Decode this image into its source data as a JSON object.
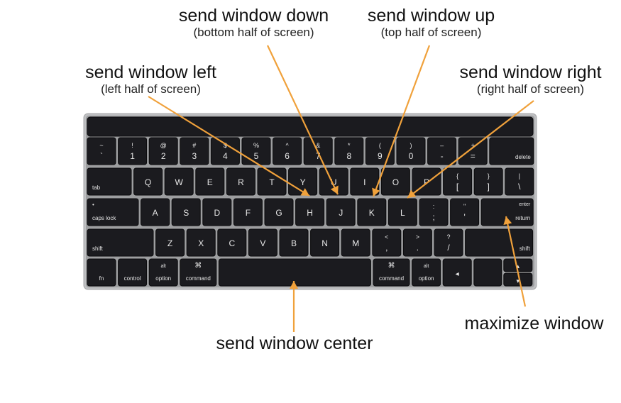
{
  "labels": {
    "down": {
      "main": "send window down",
      "sub": "(bottom half of screen)"
    },
    "up": {
      "main": "send window up",
      "sub": "(top half of screen)"
    },
    "left": {
      "main": "send window left",
      "sub": "(left half of screen)"
    },
    "right": {
      "main": "send window right",
      "sub": "(right half of screen)"
    },
    "center": {
      "main": "send window center"
    },
    "maximize": {
      "main": "maximize window"
    }
  },
  "keyboard": {
    "row1": [
      {
        "top": "~",
        "bottom": "`"
      },
      {
        "top": "!",
        "bottom": "1"
      },
      {
        "top": "@",
        "bottom": "2"
      },
      {
        "top": "#",
        "bottom": "3"
      },
      {
        "top": "$",
        "bottom": "4"
      },
      {
        "top": "%",
        "bottom": "5"
      },
      {
        "top": "^",
        "bottom": "6"
      },
      {
        "top": "&",
        "bottom": "7"
      },
      {
        "top": "*",
        "bottom": "8"
      },
      {
        "top": "(",
        "bottom": "9"
      },
      {
        "top": ")",
        "bottom": "0"
      },
      {
        "top": "–",
        "bottom": "-"
      },
      {
        "top": "+",
        "bottom": "="
      },
      {
        "label": "delete"
      }
    ],
    "row2": [
      {
        "label": "tab"
      },
      {
        "main": "Q"
      },
      {
        "main": "W"
      },
      {
        "main": "E"
      },
      {
        "main": "R"
      },
      {
        "main": "T"
      },
      {
        "main": "Y"
      },
      {
        "main": "U"
      },
      {
        "main": "I"
      },
      {
        "main": "O"
      },
      {
        "main": "P"
      },
      {
        "top": "{",
        "bottom": "["
      },
      {
        "top": "}",
        "bottom": "]"
      },
      {
        "top": "|",
        "bottom": "\\"
      }
    ],
    "row3": [
      {
        "label": "caps lock",
        "dot": "•"
      },
      {
        "main": "A"
      },
      {
        "main": "S"
      },
      {
        "main": "D"
      },
      {
        "main": "F"
      },
      {
        "main": "G"
      },
      {
        "main": "H"
      },
      {
        "main": "J"
      },
      {
        "main": "K"
      },
      {
        "main": "L"
      },
      {
        "top": ":",
        "bottom": ";"
      },
      {
        "top": "\"",
        "bottom": "'"
      },
      {
        "label": "return",
        "toplabel": "enter"
      }
    ],
    "row4": [
      {
        "label": "shift"
      },
      {
        "main": "Z"
      },
      {
        "main": "X"
      },
      {
        "main": "C"
      },
      {
        "main": "V"
      },
      {
        "main": "B"
      },
      {
        "main": "N"
      },
      {
        "main": "M"
      },
      {
        "top": "<",
        "bottom": ","
      },
      {
        "top": ">",
        "bottom": "."
      },
      {
        "top": "?",
        "bottom": "/"
      },
      {
        "label": "shift"
      }
    ],
    "row5": [
      {
        "label": "fn"
      },
      {
        "label": "control"
      },
      {
        "label": "option",
        "toplabel": "alt"
      },
      {
        "label": "command",
        "toplabel": "⌘"
      },
      {
        "label": ""
      },
      {
        "label": "command",
        "toplabel": "⌘"
      },
      {
        "label": "option",
        "toplabel": "alt"
      },
      {
        "arrow": "◂"
      },
      {
        "arrow_up": "▴",
        "arrow_down": "▾"
      }
    ]
  },
  "colors": {
    "arrow": "#f0a13b",
    "key": "#1b1b1f",
    "frame": "#bfc0c2"
  },
  "icons": [
    "orange-arrow"
  ]
}
